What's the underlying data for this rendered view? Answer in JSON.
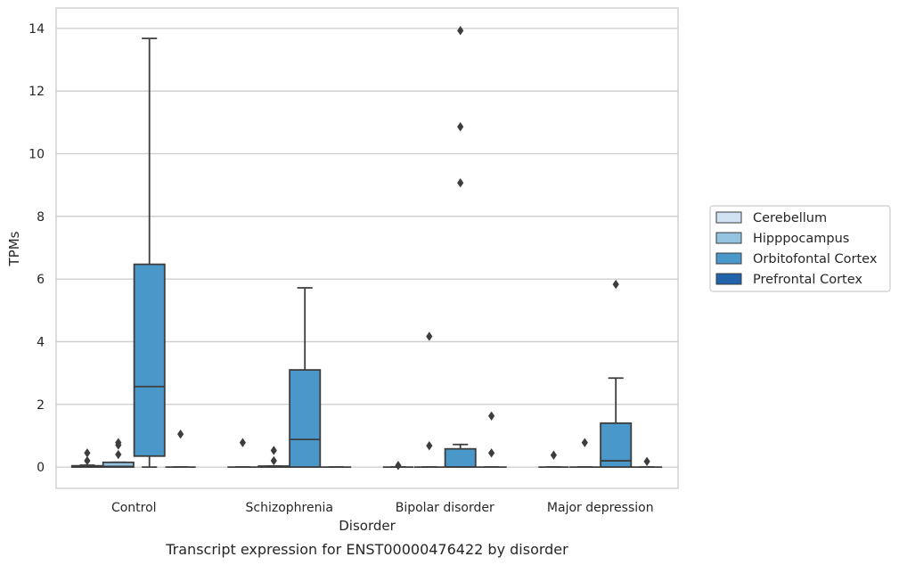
{
  "chart_data": {
    "type": "box",
    "title": "",
    "caption": "Transcript expression for ENST00000476422 by disorder",
    "xlabel": "Disorder",
    "ylabel": "TPMs",
    "ylim": [
      -0.68,
      14.65
    ],
    "yticks": [
      0,
      2,
      4,
      6,
      8,
      10,
      12,
      14
    ],
    "ytick_labels": [
      "0",
      "2",
      "4",
      "6",
      "8",
      "10",
      "12",
      "14"
    ],
    "grid": "horizontal",
    "legend_position": "right",
    "categories": [
      "Control",
      "Schizophrenia",
      "Bipolar disorder",
      "Major depression"
    ],
    "series": [
      {
        "name": "Cerebellum",
        "color": "#d0e1f2",
        "boxes": [
          {
            "q1": 0,
            "median": 0,
            "q3": 0.04,
            "whisker_low": 0,
            "whisker_high": 0.06,
            "outliers": [
              0.2,
              0.45
            ]
          },
          {
            "q1": 0,
            "median": 0,
            "q3": 0,
            "whisker_low": 0,
            "whisker_high": 0,
            "outliers": [
              0.78
            ]
          },
          {
            "q1": 0,
            "median": 0,
            "q3": 0,
            "whisker_low": 0,
            "whisker_high": 0,
            "outliers": [
              0.05
            ]
          },
          {
            "q1": 0,
            "median": 0,
            "q3": 0,
            "whisker_low": 0,
            "whisker_high": 0,
            "outliers": [
              0.38
            ]
          }
        ]
      },
      {
        "name": "Hipppocampus",
        "color": "#94c4df",
        "boxes": [
          {
            "q1": 0,
            "median": 0.02,
            "q3": 0.15,
            "whisker_low": 0,
            "whisker_high": 0.15,
            "outliers": [
              0.4,
              0.7,
              0.78
            ]
          },
          {
            "q1": 0,
            "median": 0,
            "q3": 0.03,
            "whisker_low": 0,
            "whisker_high": 0.03,
            "outliers": [
              0.2,
              0.53
            ]
          },
          {
            "q1": 0,
            "median": 0,
            "q3": 0,
            "whisker_low": 0,
            "whisker_high": 0,
            "outliers": [
              0.68,
              4.17
            ]
          },
          {
            "q1": 0,
            "median": 0,
            "q3": 0,
            "whisker_low": 0,
            "whisker_high": 0,
            "outliers": [
              0.78
            ]
          }
        ]
      },
      {
        "name": "Orbitofontal Cortex",
        "color": "#4a98c9",
        "boxes": [
          {
            "q1": 0.35,
            "median": 2.57,
            "q3": 6.47,
            "whisker_low": 0,
            "whisker_high": 13.68,
            "outliers": []
          },
          {
            "q1": 0,
            "median": 0.88,
            "q3": 3.1,
            "whisker_low": 0,
            "whisker_high": 5.72,
            "outliers": []
          },
          {
            "q1": 0,
            "median": 0,
            "q3": 0.58,
            "whisker_low": 0,
            "whisker_high": 0.72,
            "outliers": [
              9.07,
              10.86,
              13.93
            ]
          },
          {
            "q1": 0,
            "median": 0.2,
            "q3": 1.4,
            "whisker_low": 0,
            "whisker_high": 2.84,
            "outliers": [
              5.83
            ]
          }
        ]
      },
      {
        "name": "Prefrontal Cortex",
        "color": "#2163aa",
        "boxes": [
          {
            "q1": 0,
            "median": 0,
            "q3": 0,
            "whisker_low": 0,
            "whisker_high": 0,
            "outliers": [
              1.05
            ]
          },
          {
            "q1": 0,
            "median": 0,
            "q3": 0,
            "whisker_low": 0,
            "whisker_high": 0,
            "outliers": []
          },
          {
            "q1": 0,
            "median": 0,
            "q3": 0,
            "whisker_low": 0,
            "whisker_high": 0,
            "outliers": [
              0.45,
              1.63
            ]
          },
          {
            "q1": 0,
            "median": 0,
            "q3": 0,
            "whisker_low": 0,
            "whisker_high": 0,
            "outliers": [
              0.18
            ]
          }
        ]
      }
    ]
  }
}
